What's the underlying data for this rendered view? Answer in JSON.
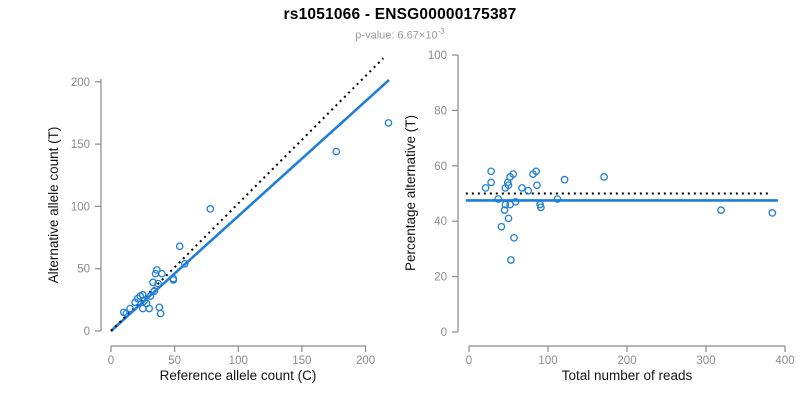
{
  "header": {
    "title": "rs1051066 - ENSG00000175387",
    "subtitle_prefix": "p-value: 6.67×10",
    "subtitle_exponent": "-3"
  },
  "colors": {
    "accent_blue": "#1f7fd8",
    "dotted_black": "#000000",
    "axis_gray": "#8a8a8a",
    "tick_label_gray": "#8c8c8c",
    "subtitle_gray": "#9a9a9a"
  },
  "chart_data": [
    {
      "type": "scatter",
      "panel": "left",
      "xlabel": "Reference allele count (C)",
      "ylabel": "Alternative allele count (T)",
      "xlim": [
        0,
        220
      ],
      "ylim": [
        0,
        220
      ],
      "xticks": [
        0,
        50,
        100,
        150,
        200
      ],
      "yticks": [
        0,
        50,
        100,
        150,
        200
      ],
      "grid": false,
      "marker": "open-circle",
      "points": [
        [
          10,
          15
        ],
        [
          12,
          14
        ],
        [
          15,
          18
        ],
        [
          19,
          23
        ],
        [
          21,
          26
        ],
        [
          23,
          28
        ],
        [
          25,
          29
        ],
        [
          26,
          24
        ],
        [
          28,
          22
        ],
        [
          25,
          18
        ],
        [
          30,
          18
        ],
        [
          31,
          28
        ],
        [
          33,
          39
        ],
        [
          34,
          32
        ],
        [
          37,
          38
        ],
        [
          35,
          46
        ],
        [
          36,
          49
        ],
        [
          40,
          46
        ],
        [
          38,
          19
        ],
        [
          39,
          14
        ],
        [
          49,
          41
        ],
        [
          49,
          42
        ],
        [
          58,
          54
        ],
        [
          54,
          68
        ],
        [
          78,
          98
        ],
        [
          177,
          144
        ],
        [
          218,
          167
        ]
      ],
      "lines": [
        {
          "name": "fit-line",
          "style": "solid",
          "color": "#1f7fd8",
          "width": 2.6,
          "from": [
            0,
            0
          ],
          "to": [
            218.5,
            201.5
          ]
        },
        {
          "name": "identity-line",
          "style": "dotted",
          "color": "#000000",
          "width": 2,
          "from": [
            0,
            0
          ],
          "to": [
            214,
            219
          ]
        }
      ]
    },
    {
      "type": "scatter",
      "panel": "right",
      "xlabel": "Total number of reads",
      "ylabel": "Percentage alternative (T)",
      "xlim": [
        0,
        400
      ],
      "ylim": [
        0,
        100
      ],
      "xticks": [
        0,
        100,
        200,
        300,
        400
      ],
      "yticks": [
        0,
        20,
        40,
        60,
        80,
        100
      ],
      "grid": false,
      "marker": "open-circle",
      "points": [
        [
          21,
          52
        ],
        [
          28,
          58
        ],
        [
          28,
          54
        ],
        [
          37,
          48
        ],
        [
          41,
          38
        ],
        [
          45,
          44
        ],
        [
          46,
          52
        ],
        [
          46,
          46
        ],
        [
          49,
          54
        ],
        [
          50,
          53
        ],
        [
          50,
          41
        ],
        [
          52,
          56
        ],
        [
          52,
          46
        ],
        [
          53,
          26
        ],
        [
          56,
          57
        ],
        [
          57,
          34
        ],
        [
          59,
          47
        ],
        [
          67,
          52
        ],
        [
          75,
          51
        ],
        [
          81,
          57
        ],
        [
          85,
          58
        ],
        [
          86,
          53
        ],
        [
          90,
          46
        ],
        [
          91,
          45
        ],
        [
          112,
          48
        ],
        [
          121,
          55
        ],
        [
          171,
          56
        ],
        [
          319,
          44
        ],
        [
          384,
          43
        ]
      ],
      "lines": [
        {
          "name": "fit-line",
          "style": "solid",
          "color": "#1f7fd8",
          "width": 2.6,
          "from": [
            -4,
            47.5
          ],
          "to": [
            391,
            47.5
          ]
        },
        {
          "name": "expected-50-line",
          "style": "dotted",
          "color": "#000000",
          "width": 2,
          "from": [
            -4,
            50
          ],
          "to": [
            381,
            50
          ]
        }
      ]
    }
  ]
}
